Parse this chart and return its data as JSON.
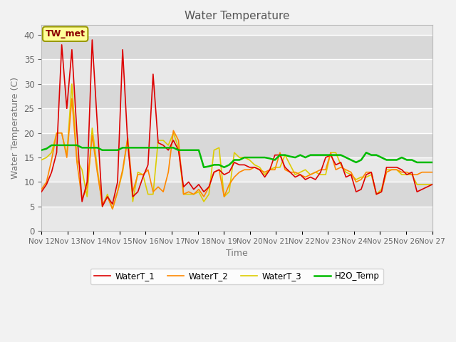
{
  "title": "Water Temperature",
  "xlabel": "Time",
  "ylabel": "Water Temperature (C)",
  "ylim": [
    0,
    42
  ],
  "yticks": [
    0,
    5,
    10,
    15,
    20,
    25,
    30,
    35,
    40
  ],
  "fig_bg": "#f0f0f0",
  "plot_bg": "#e8e8e8",
  "annotation_text": "TW_met",
  "annotation_color": "#8B0000",
  "annotation_bg": "#ffff99",
  "annotation_border": "#999900",
  "series_colors": {
    "WaterT_1": "#dd0000",
    "WaterT_2": "#ff8800",
    "WaterT_3": "#ddcc00",
    "H2O_Temp": "#00bb00"
  },
  "series_lw": {
    "WaterT_1": 1.2,
    "WaterT_2": 1.2,
    "WaterT_3": 1.2,
    "H2O_Temp": 1.8
  },
  "x_labels": [
    "Nov 12",
    "Nov 13",
    "Nov 14",
    "Nov 15",
    "Nov 16",
    "Nov 17",
    "Nov 18",
    "Nov 19",
    "Nov 20",
    "Nov 21",
    "Nov 22",
    "Nov 23",
    "Nov 24",
    "Nov 25",
    "Nov 26",
    "Nov 27"
  ],
  "WaterT_1": [
    8.0,
    9.5,
    12.0,
    16.0,
    38.0,
    25.0,
    37.0,
    20.0,
    6.0,
    10.0,
    39.0,
    22.0,
    5.0,
    7.0,
    5.5,
    10.0,
    37.0,
    18.0,
    7.0,
    8.0,
    11.0,
    13.5,
    32.0,
    18.0,
    17.5,
    16.5,
    18.5,
    16.5,
    9.0,
    10.0,
    8.5,
    9.5,
    8.0,
    9.0,
    12.0,
    12.5,
    11.5,
    12.0,
    14.0,
    13.5,
    13.5,
    13.0,
    13.0,
    12.5,
    11.0,
    12.5,
    15.5,
    15.5,
    13.0,
    12.0,
    11.0,
    11.5,
    10.5,
    11.0,
    10.5,
    12.0,
    15.0,
    15.5,
    13.5,
    14.0,
    11.0,
    11.5,
    8.0,
    8.5,
    11.5,
    12.0,
    7.5,
    8.0,
    13.0,
    13.0,
    13.0,
    12.5,
    11.5,
    12.0,
    8.0,
    8.5,
    9.0,
    9.5
  ],
  "WaterT_2": [
    8.5,
    10.0,
    14.5,
    20.0,
    20.0,
    15.0,
    27.0,
    14.0,
    6.5,
    9.0,
    19.5,
    12.0,
    5.5,
    7.0,
    4.5,
    8.0,
    12.5,
    19.0,
    8.0,
    11.5,
    11.5,
    12.5,
    8.0,
    9.0,
    8.0,
    12.0,
    20.5,
    18.5,
    7.5,
    8.0,
    7.5,
    8.5,
    7.0,
    9.0,
    12.0,
    12.5,
    7.0,
    9.5,
    11.0,
    12.0,
    12.5,
    12.5,
    13.0,
    12.5,
    12.0,
    12.5,
    12.5,
    16.0,
    12.5,
    12.0,
    12.0,
    11.5,
    11.0,
    11.5,
    12.0,
    12.5,
    12.5,
    16.0,
    12.5,
    13.0,
    12.5,
    12.0,
    10.0,
    10.5,
    12.0,
    12.0,
    7.5,
    8.0,
    12.0,
    12.5,
    12.5,
    12.0,
    12.0,
    11.5,
    11.5,
    12.0,
    12.0,
    12.0
  ],
  "WaterT_3": [
    14.5,
    15.0,
    16.0,
    20.0,
    20.0,
    15.5,
    30.0,
    14.5,
    12.5,
    7.0,
    21.0,
    13.0,
    5.0,
    7.5,
    4.5,
    8.0,
    12.0,
    19.0,
    6.0,
    12.0,
    11.5,
    7.5,
    7.5,
    18.5,
    18.5,
    17.5,
    20.0,
    17.0,
    7.5,
    7.5,
    7.5,
    8.0,
    6.0,
    7.5,
    16.5,
    17.0,
    7.0,
    8.0,
    16.0,
    15.0,
    15.0,
    14.5,
    13.5,
    13.0,
    11.5,
    12.5,
    13.0,
    13.0,
    15.5,
    13.5,
    11.5,
    12.0,
    12.5,
    11.5,
    12.0,
    11.5,
    11.5,
    16.0,
    16.0,
    13.5,
    12.0,
    11.5,
    10.5,
    11.0,
    11.0,
    11.5,
    7.5,
    8.5,
    12.5,
    12.5,
    12.5,
    11.5,
    11.5,
    11.5,
    9.5,
    9.5,
    9.5,
    9.5
  ],
  "H2O_Temp": [
    16.5,
    16.8,
    17.5,
    17.5,
    17.5,
    17.5,
    17.5,
    17.5,
    17.0,
    17.0,
    17.0,
    17.0,
    16.5,
    16.5,
    16.5,
    16.5,
    17.0,
    17.0,
    17.0,
    17.0,
    17.0,
    17.0,
    17.0,
    17.0,
    17.0,
    17.0,
    17.0,
    16.5,
    16.5,
    16.5,
    16.5,
    16.5,
    13.0,
    13.2,
    13.5,
    13.5,
    13.0,
    13.5,
    14.5,
    14.5,
    15.0,
    15.0,
    15.0,
    15.0,
    15.0,
    14.8,
    14.5,
    15.5,
    15.5,
    15.2,
    15.0,
    15.5,
    15.0,
    15.5,
    15.5,
    15.5,
    15.5,
    15.5,
    15.5,
    15.5,
    15.0,
    14.5,
    14.0,
    14.5,
    16.0,
    15.5,
    15.5,
    15.0,
    14.5,
    14.5,
    14.5,
    15.0,
    14.5,
    14.5,
    14.0,
    14.0,
    14.0,
    14.0
  ]
}
